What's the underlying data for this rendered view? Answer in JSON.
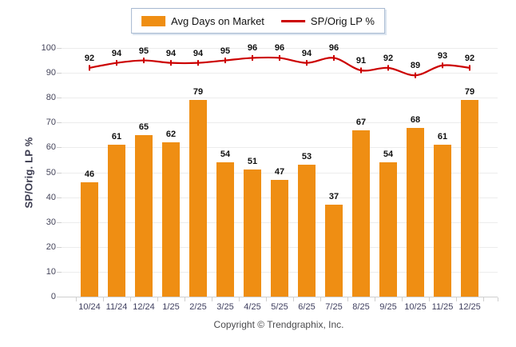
{
  "chart_data": {
    "type": "combo",
    "categories": [
      "10/24",
      "11/24",
      "12/24",
      "1/25",
      "2/25",
      "3/25",
      "4/25",
      "5/25",
      "6/25",
      "7/25",
      "8/25",
      "9/25",
      "10/25",
      "11/25",
      "12/25"
    ],
    "series": [
      {
        "name": "Avg Days on Market",
        "type": "bar",
        "values": [
          46,
          61,
          65,
          62,
          79,
          54,
          51,
          47,
          53,
          37,
          67,
          54,
          68,
          61,
          79
        ]
      },
      {
        "name": "SP/Orig LP %",
        "type": "line",
        "values": [
          92,
          94,
          95,
          94,
          94,
          95,
          96,
          96,
          94,
          96,
          91,
          92,
          89,
          93,
          92
        ]
      }
    ],
    "title": "",
    "xlabel": "",
    "ylabel": "SP/Orig. LP %",
    "ylim": [
      0,
      100
    ],
    "ytick_step": 10,
    "yticks": [
      0,
      10,
      20,
      30,
      40,
      50,
      60,
      70,
      80,
      90,
      100
    ],
    "grid": true,
    "value_labels": true,
    "legend_position": "top-center"
  },
  "colors": {
    "bar": "#EF8E13",
    "line": "#CC0000",
    "grid": "#ECECEC",
    "axis": "#CFCFCF",
    "value_label": "#111111",
    "tick_text": "#44445A",
    "axis_title": "#3A3A4E",
    "copyright_text": "#4B4B4D",
    "legend_border": "#A6B8D0"
  },
  "footer": {
    "copyright": "Copyright © Trendgraphix, Inc."
  }
}
